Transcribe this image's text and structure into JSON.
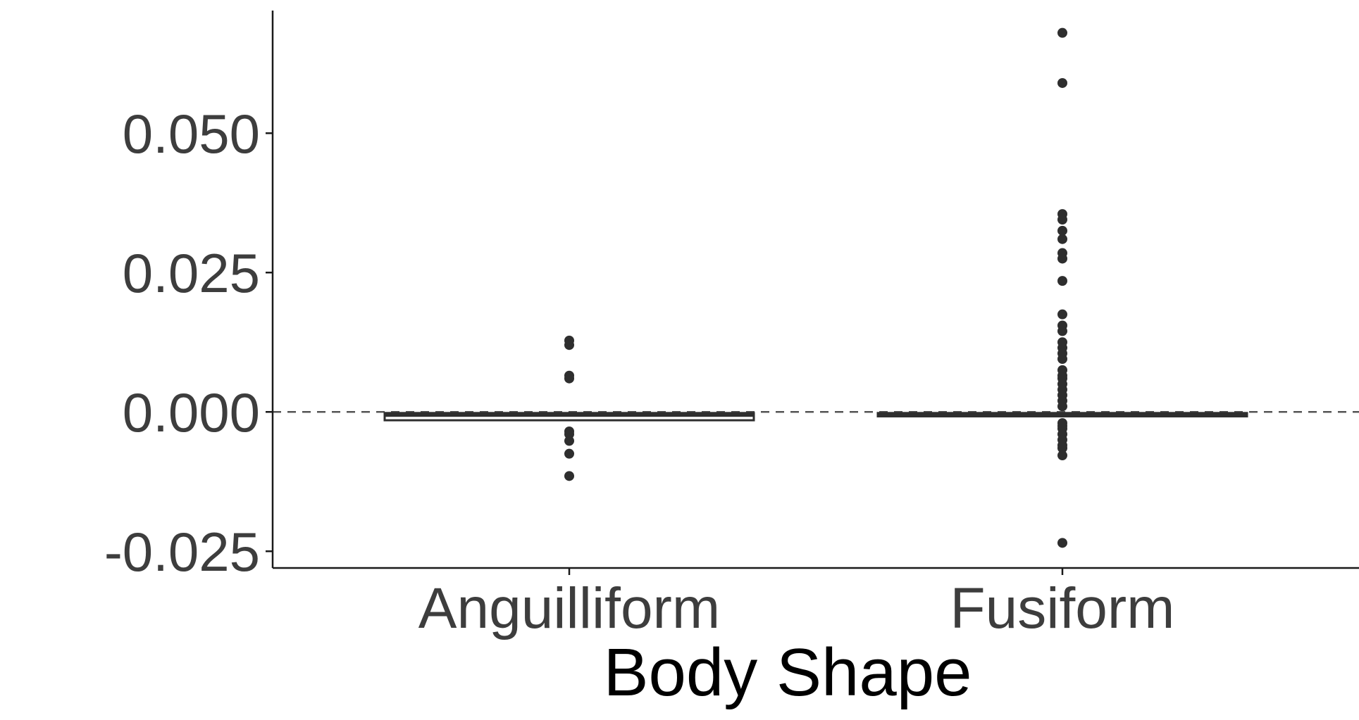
{
  "chart_data": {
    "type": "box",
    "title": "",
    "xlabel": "Body Shape",
    "ylabel": "",
    "ylim": [
      -0.028,
      0.072
    ],
    "yticks": [
      -0.025,
      0.0,
      0.025,
      0.05
    ],
    "ytick_labels": [
      "-0.025",
      "0.000",
      "0.025",
      "0.050"
    ],
    "categories": [
      "Anguilliform",
      "Fusiform"
    ],
    "reference_line": {
      "y": 0.0,
      "style": "dashed"
    },
    "grid": false,
    "legend": "none",
    "boxes": [
      {
        "category": "Anguilliform",
        "q1": -0.0015,
        "median": -0.0005,
        "q3": -0.0002,
        "whisker_low": -0.0015,
        "whisker_high": 0.0,
        "outliers": [
          0.0128,
          0.012,
          0.0065,
          0.006,
          -0.0035,
          -0.004,
          -0.0052,
          -0.0075,
          -0.0115
        ]
      },
      {
        "category": "Fusiform",
        "q1": -0.0008,
        "median": -0.0005,
        "q3": -0.0002,
        "whisker_low": -0.0008,
        "whisker_high": -0.0002,
        "outliers": [
          0.068,
          0.059,
          0.0355,
          0.0345,
          0.0325,
          0.031,
          0.0285,
          0.0275,
          0.0235,
          0.0175,
          0.0155,
          0.0145,
          0.0125,
          0.0115,
          0.0105,
          0.0095,
          0.0075,
          0.0065,
          0.006,
          0.005,
          0.004,
          0.003,
          0.002,
          0.001,
          -0.002,
          -0.0025,
          -0.003,
          -0.004,
          -0.005,
          -0.006,
          -0.0065,
          -0.0078,
          -0.0235
        ]
      }
    ],
    "colors": {
      "ink": "#2e2e2e",
      "axis": "#1a1a1a",
      "label": "#3d3d3d",
      "box_fill": "#ffffff"
    }
  }
}
